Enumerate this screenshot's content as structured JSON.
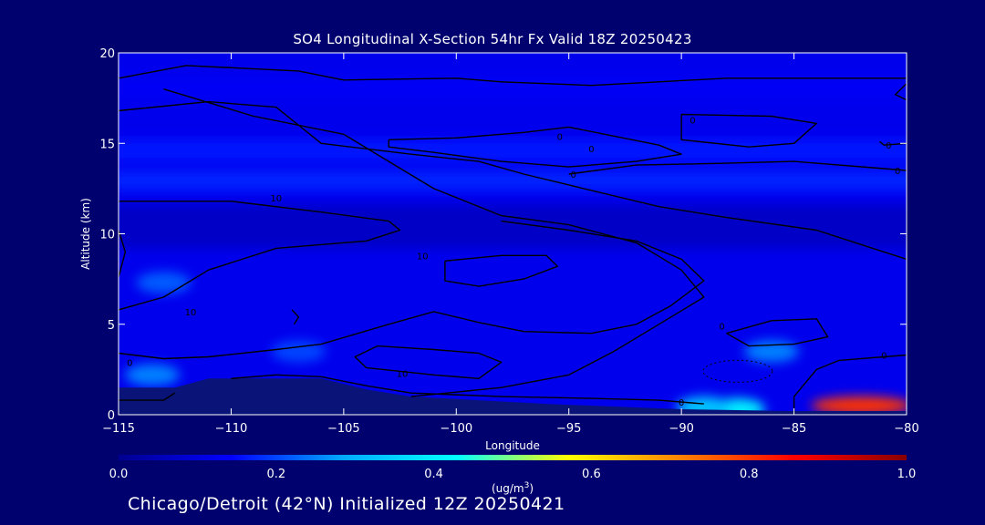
{
  "title": "SO4 Longitudinal X-Section 54hr  Fx Valid 18Z 20250423",
  "footer": "Chicago/Detroit (42°N) Initialized 12Z 20250421",
  "colors": {
    "background": "#00006e",
    "colorbar": [
      "#000090",
      "#0000ff",
      "#00aaff",
      "#00ffff",
      "#ffff00",
      "#ff8000",
      "#ff0000",
      "#880000"
    ]
  },
  "chart_data": {
    "type": "heatmap",
    "xlabel": "Longitude",
    "ylabel": "Altitude (km)",
    "xlim": [
      -115,
      -80
    ],
    "ylim": [
      0,
      20
    ],
    "xticks": [
      -115,
      -110,
      -105,
      -100,
      -95,
      -90,
      -85,
      -80
    ],
    "yticks": [
      0,
      5,
      10,
      15,
      20
    ],
    "colorbar": {
      "label": "(ug/m3)",
      "range": [
        0.0,
        1.0
      ],
      "ticks": [
        "0.0",
        "0.2",
        "0.4",
        "0.6",
        "0.8",
        "1.0"
      ]
    },
    "field": {
      "background_value": 0.12,
      "upper_layers": [
        {
          "alt": [
            17.5,
            18.6
          ],
          "value": 0.13
        },
        {
          "alt": [
            14.0,
            15.2
          ],
          "value": 0.16
        },
        {
          "alt": [
            12.4,
            13.5
          ],
          "value": 0.17
        },
        {
          "alt": [
            9.2,
            11.6
          ],
          "value": 0.07
        }
      ],
      "features": [
        {
          "lon": -82.0,
          "alt": 0.5,
          "value": 0.8,
          "desc": "high near surface east"
        },
        {
          "lon": -87.5,
          "alt": 0.3,
          "value": 0.4
        },
        {
          "lon": -89.0,
          "alt": 0.4,
          "value": 0.33
        },
        {
          "lon": -86.0,
          "alt": 3.5,
          "value": 0.25
        },
        {
          "lon": -113.0,
          "alt": 7.3,
          "value": 0.22
        },
        {
          "lon": -113.5,
          "alt": 2.2,
          "value": 0.25
        },
        {
          "lon": -107.0,
          "alt": 3.5,
          "value": 0.2
        }
      ]
    },
    "contour_labels": [
      {
        "lon": -108.0,
        "alt": 12.0,
        "text": "10"
      },
      {
        "lon": -101.5,
        "alt": 8.8,
        "text": "10"
      },
      {
        "lon": -111.8,
        "alt": 5.7,
        "text": "10"
      },
      {
        "lon": -102.4,
        "alt": 2.3,
        "text": "10"
      },
      {
        "lon": -114.5,
        "alt": 2.9,
        "text": "0"
      },
      {
        "lon": -95.4,
        "alt": 15.4,
        "text": "0"
      },
      {
        "lon": -94.0,
        "alt": 14.7,
        "text": "0"
      },
      {
        "lon": -94.8,
        "alt": 13.3,
        "text": "0"
      },
      {
        "lon": -89.5,
        "alt": 16.3,
        "text": "0"
      },
      {
        "lon": -80.8,
        "alt": 14.9,
        "text": "0"
      },
      {
        "lon": -80.4,
        "alt": 13.5,
        "text": "0"
      },
      {
        "lon": -88.2,
        "alt": 4.9,
        "text": "0"
      },
      {
        "lon": -81.0,
        "alt": 3.3,
        "text": "0"
      },
      {
        "lon": -90.0,
        "alt": 0.7,
        "text": "0"
      }
    ]
  }
}
